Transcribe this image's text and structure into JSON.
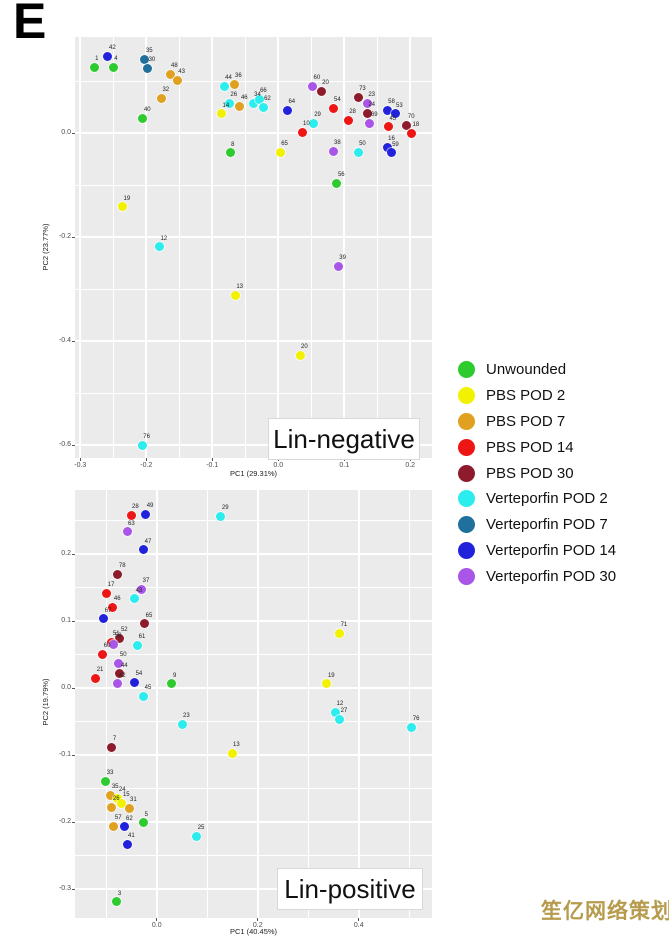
{
  "panel_label": "E",
  "watermark": {
    "text": "笙亿网络策划",
    "color": "#b79b4d"
  },
  "legend": {
    "items": [
      {
        "label": "Unwounded",
        "color": "#2ecb2e"
      },
      {
        "label": "PBS POD 2",
        "color": "#f2f200"
      },
      {
        "label": "PBS POD 7",
        "color": "#e0a020"
      },
      {
        "label": "PBS POD 14",
        "color": "#ee1515"
      },
      {
        "label": "PBS POD 30",
        "color": "#8e1b2c"
      },
      {
        "label": "Verteporfin POD 2",
        "color": "#2beded"
      },
      {
        "label": "Verteporfin POD 7",
        "color": "#20709e"
      },
      {
        "label": "Verteporfin POD 14",
        "color": "#2222dd"
      },
      {
        "label": "Verteporfin POD 30",
        "color": "#a855e8"
      }
    ]
  },
  "chart_data": [
    {
      "type": "scatter",
      "title": "Lin-negative",
      "xlabel": "PC1 (29.31%)",
      "ylabel": "PC2 (23.77%)",
      "xlim": [
        -0.308,
        0.233
      ],
      "ylim": [
        -0.625,
        0.185
      ],
      "xticks": [
        -0.3,
        -0.2,
        -0.1,
        0.0,
        0.1,
        0.2
      ],
      "yticks": [
        0.0,
        -0.2,
        -0.4,
        -0.6
      ],
      "grid": true,
      "legend_position": "right-outside",
      "points": [
        {
          "x": -0.279,
          "y": 0.127,
          "g": 0,
          "n": "1"
        },
        {
          "x": -0.258,
          "y": 0.148,
          "g": 7,
          "n": "42"
        },
        {
          "x": -0.25,
          "y": 0.127,
          "g": 0,
          "n": "4"
        },
        {
          "x": -0.202,
          "y": 0.142,
          "g": 6,
          "n": "35"
        },
        {
          "x": -0.198,
          "y": 0.125,
          "g": 6,
          "n": "30"
        },
        {
          "x": -0.164,
          "y": 0.113,
          "g": 2,
          "n": "48"
        },
        {
          "x": -0.153,
          "y": 0.102,
          "g": 2,
          "n": "43"
        },
        {
          "x": -0.177,
          "y": 0.067,
          "g": 2,
          "n": "32"
        },
        {
          "x": -0.205,
          "y": 0.029,
          "g": 0,
          "n": "40"
        },
        {
          "x": -0.082,
          "y": 0.09,
          "g": 5,
          "n": "44"
        },
        {
          "x": -0.067,
          "y": 0.094,
          "g": 2,
          "n": "36"
        },
        {
          "x": -0.074,
          "y": 0.058,
          "g": 5,
          "n": "26"
        },
        {
          "x": -0.058,
          "y": 0.052,
          "g": 2,
          "n": "46"
        },
        {
          "x": -0.038,
          "y": 0.058,
          "g": 5,
          "n": "34"
        },
        {
          "x": -0.086,
          "y": 0.037,
          "g": 1,
          "n": "14"
        },
        {
          "x": -0.073,
          "y": -0.038,
          "g": 0,
          "n": "8"
        },
        {
          "x": -0.029,
          "y": 0.065,
          "g": 5,
          "n": "66"
        },
        {
          "x": -0.023,
          "y": 0.05,
          "g": 5,
          "n": "62"
        },
        {
          "x": 0.014,
          "y": 0.044,
          "g": 7,
          "n": "64"
        },
        {
          "x": 0.052,
          "y": 0.09,
          "g": 8,
          "n": "60"
        },
        {
          "x": 0.065,
          "y": 0.081,
          "g": 4,
          "n": "20"
        },
        {
          "x": 0.121,
          "y": 0.069,
          "g": 4,
          "n": "73"
        },
        {
          "x": 0.135,
          "y": 0.058,
          "g": 8,
          "n": "23"
        },
        {
          "x": 0.135,
          "y": 0.038,
          "g": 4,
          "n": "24"
        },
        {
          "x": 0.083,
          "y": 0.048,
          "g": 3,
          "n": "54"
        },
        {
          "x": 0.106,
          "y": 0.025,
          "g": 3,
          "n": "28"
        },
        {
          "x": 0.139,
          "y": 0.019,
          "g": 8,
          "n": "69"
        },
        {
          "x": 0.053,
          "y": 0.019,
          "g": 5,
          "n": "29"
        },
        {
          "x": 0.036,
          "y": 0.002,
          "g": 3,
          "n": "10"
        },
        {
          "x": 0.165,
          "y": 0.044,
          "g": 7,
          "n": "58"
        },
        {
          "x": 0.177,
          "y": 0.037,
          "g": 7,
          "n": "53"
        },
        {
          "x": 0.167,
          "y": 0.012,
          "g": 3,
          "n": "45"
        },
        {
          "x": 0.195,
          "y": 0.015,
          "g": 4,
          "n": "70"
        },
        {
          "x": 0.202,
          "y": 0.0,
          "g": 3,
          "n": "18"
        },
        {
          "x": 0.003,
          "y": -0.037,
          "g": 1,
          "n": "65"
        },
        {
          "x": 0.083,
          "y": -0.035,
          "g": 8,
          "n": "38"
        },
        {
          "x": 0.121,
          "y": -0.037,
          "g": 5,
          "n": "50"
        },
        {
          "x": 0.165,
          "y": -0.027,
          "g": 7,
          "n": "16"
        },
        {
          "x": 0.171,
          "y": -0.038,
          "g": 7,
          "n": "59"
        },
        {
          "x": 0.089,
          "y": -0.096,
          "g": 0,
          "n": "56"
        },
        {
          "x": -0.236,
          "y": -0.142,
          "g": 1,
          "n": "19"
        },
        {
          "x": -0.18,
          "y": -0.219,
          "g": 5,
          "n": "12"
        },
        {
          "x": 0.091,
          "y": -0.256,
          "g": 8,
          "n": "39"
        },
        {
          "x": -0.065,
          "y": -0.312,
          "g": 1,
          "n": "13"
        },
        {
          "x": 0.033,
          "y": -0.427,
          "g": 1,
          "n": "20"
        },
        {
          "x": -0.206,
          "y": -0.6,
          "g": 5,
          "n": "76"
        }
      ]
    },
    {
      "type": "scatter",
      "title": "Lin-positive",
      "xlabel": "PC1 (40.45%)",
      "ylabel": "PC2 (19.79%)",
      "xlim": [
        -0.162,
        0.545
      ],
      "ylim": [
        -0.343,
        0.296
      ],
      "xticks": [
        0.0,
        0.2,
        0.4
      ],
      "yticks": [
        0.2,
        0.1,
        0.0,
        -0.1,
        -0.2,
        -0.3
      ],
      "grid": true,
      "legend_position": "right-outside",
      "points": [
        {
          "x": -0.051,
          "y": 0.258,
          "g": 3,
          "n": "28"
        },
        {
          "x": -0.022,
          "y": 0.26,
          "g": 7,
          "n": "49"
        },
        {
          "x": -0.059,
          "y": 0.234,
          "g": 8,
          "n": "63"
        },
        {
          "x": -0.026,
          "y": 0.207,
          "g": 7,
          "n": "47"
        },
        {
          "x": 0.127,
          "y": 0.257,
          "g": 5,
          "n": "29"
        },
        {
          "x": -0.077,
          "y": 0.17,
          "g": 4,
          "n": "78"
        },
        {
          "x": -0.099,
          "y": 0.142,
          "g": 3,
          "n": "17"
        },
        {
          "x": -0.03,
          "y": 0.148,
          "g": 8,
          "n": "37"
        },
        {
          "x": -0.044,
          "y": 0.134,
          "g": 5,
          "n": "43"
        },
        {
          "x": -0.087,
          "y": 0.121,
          "g": 3,
          "n": "46"
        },
        {
          "x": -0.105,
          "y": 0.104,
          "g": 7,
          "n": "67"
        },
        {
          "x": -0.024,
          "y": 0.096,
          "g": 4,
          "n": "65"
        },
        {
          "x": -0.073,
          "y": 0.075,
          "g": 4,
          "n": "52"
        },
        {
          "x": -0.089,
          "y": 0.069,
          "g": 3,
          "n": "51"
        },
        {
          "x": -0.085,
          "y": 0.066,
          "g": 8,
          "n": "58"
        },
        {
          "x": -0.038,
          "y": 0.064,
          "g": 5,
          "n": "61"
        },
        {
          "x": -0.107,
          "y": 0.051,
          "g": 3,
          "n": "60"
        },
        {
          "x": -0.075,
          "y": 0.037,
          "g": 8,
          "n": "50"
        },
        {
          "x": -0.073,
          "y": 0.022,
          "g": 4,
          "n": "44"
        },
        {
          "x": -0.121,
          "y": 0.015,
          "g": 3,
          "n": "21"
        },
        {
          "x": -0.077,
          "y": 0.007,
          "g": 8,
          "n": "42"
        },
        {
          "x": -0.044,
          "y": 0.009,
          "g": 7,
          "n": "54"
        },
        {
          "x": 0.03,
          "y": 0.007,
          "g": 0,
          "n": "9"
        },
        {
          "x": -0.026,
          "y": -0.012,
          "g": 5,
          "n": "45"
        },
        {
          "x": 0.362,
          "y": 0.082,
          "g": 1,
          "n": "71"
        },
        {
          "x": 0.337,
          "y": 0.007,
          "g": 1,
          "n": "19"
        },
        {
          "x": 0.354,
          "y": -0.036,
          "g": 5,
          "n": "12"
        },
        {
          "x": 0.362,
          "y": -0.046,
          "g": 5,
          "n": "27"
        },
        {
          "x": 0.505,
          "y": -0.058,
          "g": 5,
          "n": "76"
        },
        {
          "x": 0.05,
          "y": -0.054,
          "g": 5,
          "n": "23"
        },
        {
          "x": -0.089,
          "y": -0.088,
          "g": 4,
          "n": "7"
        },
        {
          "x": 0.149,
          "y": -0.097,
          "g": 1,
          "n": "13"
        },
        {
          "x": -0.101,
          "y": -0.139,
          "g": 0,
          "n": "33"
        },
        {
          "x": -0.091,
          "y": -0.16,
          "g": 2,
          "n": "35"
        },
        {
          "x": -0.077,
          "y": -0.164,
          "g": 1,
          "n": "24"
        },
        {
          "x": -0.069,
          "y": -0.172,
          "g": 1,
          "n": "15"
        },
        {
          "x": -0.089,
          "y": -0.178,
          "g": 2,
          "n": "26"
        },
        {
          "x": -0.055,
          "y": -0.179,
          "g": 2,
          "n": "31"
        },
        {
          "x": -0.085,
          "y": -0.206,
          "g": 2,
          "n": "57"
        },
        {
          "x": -0.063,
          "y": -0.207,
          "g": 7,
          "n": "62"
        },
        {
          "x": -0.026,
          "y": -0.201,
          "g": 0,
          "n": "5"
        },
        {
          "x": -0.059,
          "y": -0.233,
          "g": 7,
          "n": "41"
        },
        {
          "x": 0.079,
          "y": -0.221,
          "g": 5,
          "n": "25"
        },
        {
          "x": -0.079,
          "y": -0.319,
          "g": 0,
          "n": "3"
        }
      ]
    }
  ]
}
